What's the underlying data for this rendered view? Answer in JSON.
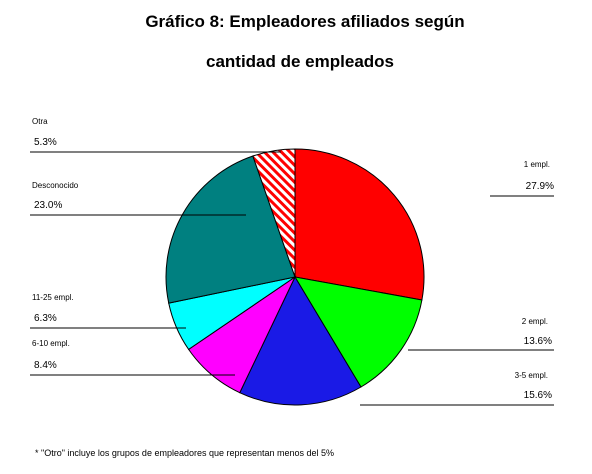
{
  "chart_data": {
    "type": "pie",
    "title_line1": "Gráfico 8: Empleadores afiliados según",
    "title_line2": "cantidad de empleados",
    "slices": [
      {
        "label": "1 empl.",
        "value": 27.9,
        "percent_text": "27.9%",
        "color": "#ff0000"
      },
      {
        "label": "2 empl.",
        "value": 13.6,
        "percent_text": "13.6%",
        "color": "#00ff00"
      },
      {
        "label": "3-5 empl.",
        "value": 15.6,
        "percent_text": "15.6%",
        "color": "#1a1ae6"
      },
      {
        "label": "6-10 empl.",
        "value": 8.4,
        "percent_text": "8.4%",
        "color": "#ff00ff"
      },
      {
        "label": "11-25 empl.",
        "value": 6.3,
        "percent_text": "6.3%",
        "color": "#00ffff"
      },
      {
        "label": "Desconocido",
        "value": 23.0,
        "percent_text": "23.0%",
        "color": "#008080"
      },
      {
        "label": "Otra",
        "value": 5.3,
        "percent_text": "5.3%",
        "color": "#ff0000",
        "pattern": "hatch"
      }
    ],
    "footnote": "* \"Otro\" incluye los grupos de empleadores que representan menos del 5%"
  }
}
